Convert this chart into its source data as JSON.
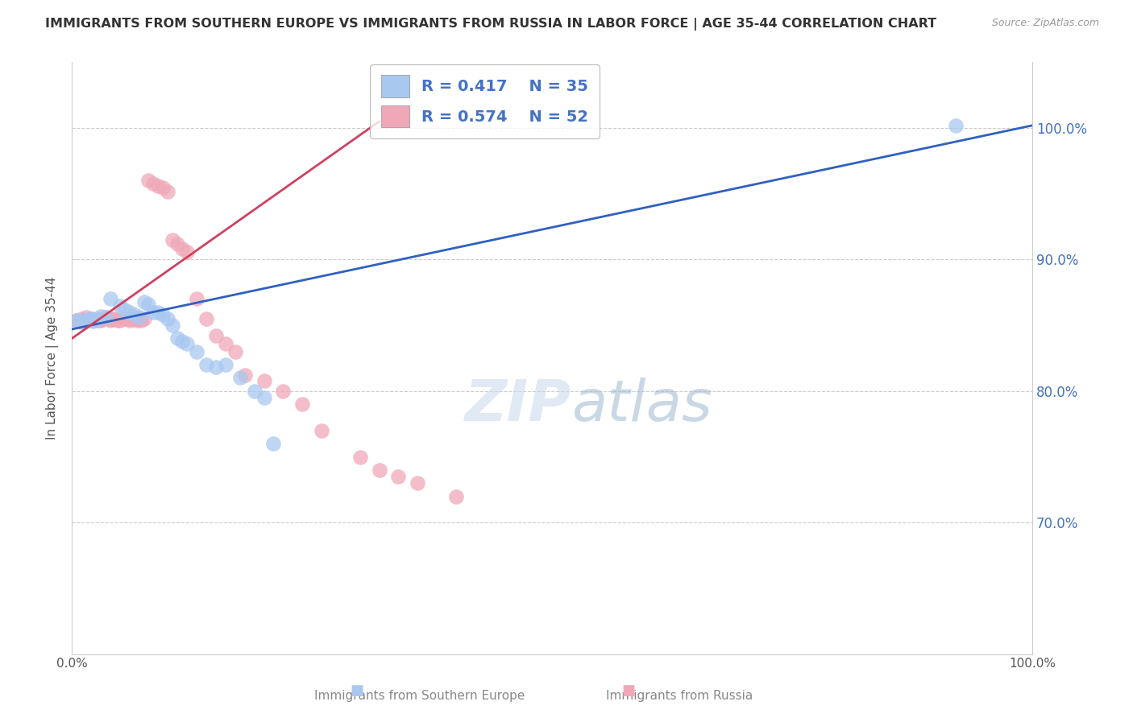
{
  "title": "IMMIGRANTS FROM SOUTHERN EUROPE VS IMMIGRANTS FROM RUSSIA IN LABOR FORCE | AGE 35-44 CORRELATION CHART",
  "source": "Source: ZipAtlas.com",
  "ylabel": "In Labor Force | Age 35-44",
  "xlim": [
    0.0,
    1.0
  ],
  "ylim": [
    0.6,
    1.05
  ],
  "y_tick_positions": [
    0.7,
    0.8,
    0.9,
    1.0
  ],
  "y_tick_labels": [
    "70.0%",
    "80.0%",
    "90.0%",
    "100.0%"
  ],
  "x_tick_labels": [
    "0.0%",
    "100.0%"
  ],
  "legend_r_blue": "R = 0.417",
  "legend_n_blue": "N = 35",
  "legend_r_pink": "R = 0.574",
  "legend_n_pink": "N = 52",
  "blue_color": "#A8C8F0",
  "pink_color": "#F0A8B8",
  "blue_line_color": "#3060C0",
  "pink_line_color": "#D04060",
  "background_color": "#ffffff",
  "grid_color": "#cccccc",
  "blue_scatter_x": [
    0.005,
    0.01,
    0.012,
    0.015,
    0.018,
    0.02,
    0.022,
    0.025,
    0.03,
    0.035,
    0.04,
    0.05,
    0.055,
    0.06,
    0.065,
    0.07,
    0.075,
    0.08,
    0.085,
    0.09,
    0.095,
    0.1,
    0.105,
    0.11,
    0.115,
    0.12,
    0.13,
    0.14,
    0.15,
    0.16,
    0.175,
    0.19,
    0.2,
    0.21,
    0.92
  ],
  "blue_scatter_y": [
    0.854,
    0.854,
    0.852,
    0.854,
    0.855,
    0.855,
    0.853,
    0.854,
    0.857,
    0.856,
    0.87,
    0.865,
    0.862,
    0.86,
    0.858,
    0.856,
    0.868,
    0.866,
    0.86,
    0.86,
    0.858,
    0.855,
    0.85,
    0.84,
    0.838,
    0.836,
    0.83,
    0.82,
    0.818,
    0.82,
    0.81,
    0.8,
    0.795,
    0.76,
    1.002
  ],
  "pink_scatter_x": [
    0.005,
    0.008,
    0.01,
    0.012,
    0.015,
    0.018,
    0.02,
    0.022,
    0.025,
    0.028,
    0.03,
    0.032,
    0.035,
    0.038,
    0.04,
    0.042,
    0.045,
    0.048,
    0.05,
    0.055,
    0.058,
    0.06,
    0.062,
    0.065,
    0.068,
    0.07,
    0.072,
    0.075,
    0.08,
    0.085,
    0.09,
    0.095,
    0.1,
    0.105,
    0.11,
    0.115,
    0.12,
    0.13,
    0.14,
    0.15,
    0.16,
    0.17,
    0.18,
    0.2,
    0.22,
    0.24,
    0.26,
    0.3,
    0.32,
    0.34,
    0.36,
    0.4
  ],
  "pink_scatter_y": [
    0.854,
    0.853,
    0.855,
    0.854,
    0.856,
    0.854,
    0.855,
    0.854,
    0.855,
    0.854,
    0.854,
    0.855,
    0.856,
    0.855,
    0.854,
    0.855,
    0.855,
    0.854,
    0.854,
    0.855,
    0.855,
    0.854,
    0.855,
    0.855,
    0.854,
    0.855,
    0.854,
    0.855,
    0.96,
    0.958,
    0.956,
    0.955,
    0.952,
    0.915,
    0.912,
    0.908,
    0.906,
    0.87,
    0.855,
    0.842,
    0.836,
    0.83,
    0.812,
    0.808,
    0.8,
    0.79,
    0.77,
    0.75,
    0.74,
    0.735,
    0.73,
    0.72
  ],
  "blue_line_x0": 0.0,
  "blue_line_y0": 0.847,
  "blue_line_x1": 1.0,
  "blue_line_y1": 1.002,
  "pink_line_x0": 0.0,
  "pink_line_y0": 0.84,
  "pink_line_x1": 0.32,
  "pink_line_y1": 1.005
}
